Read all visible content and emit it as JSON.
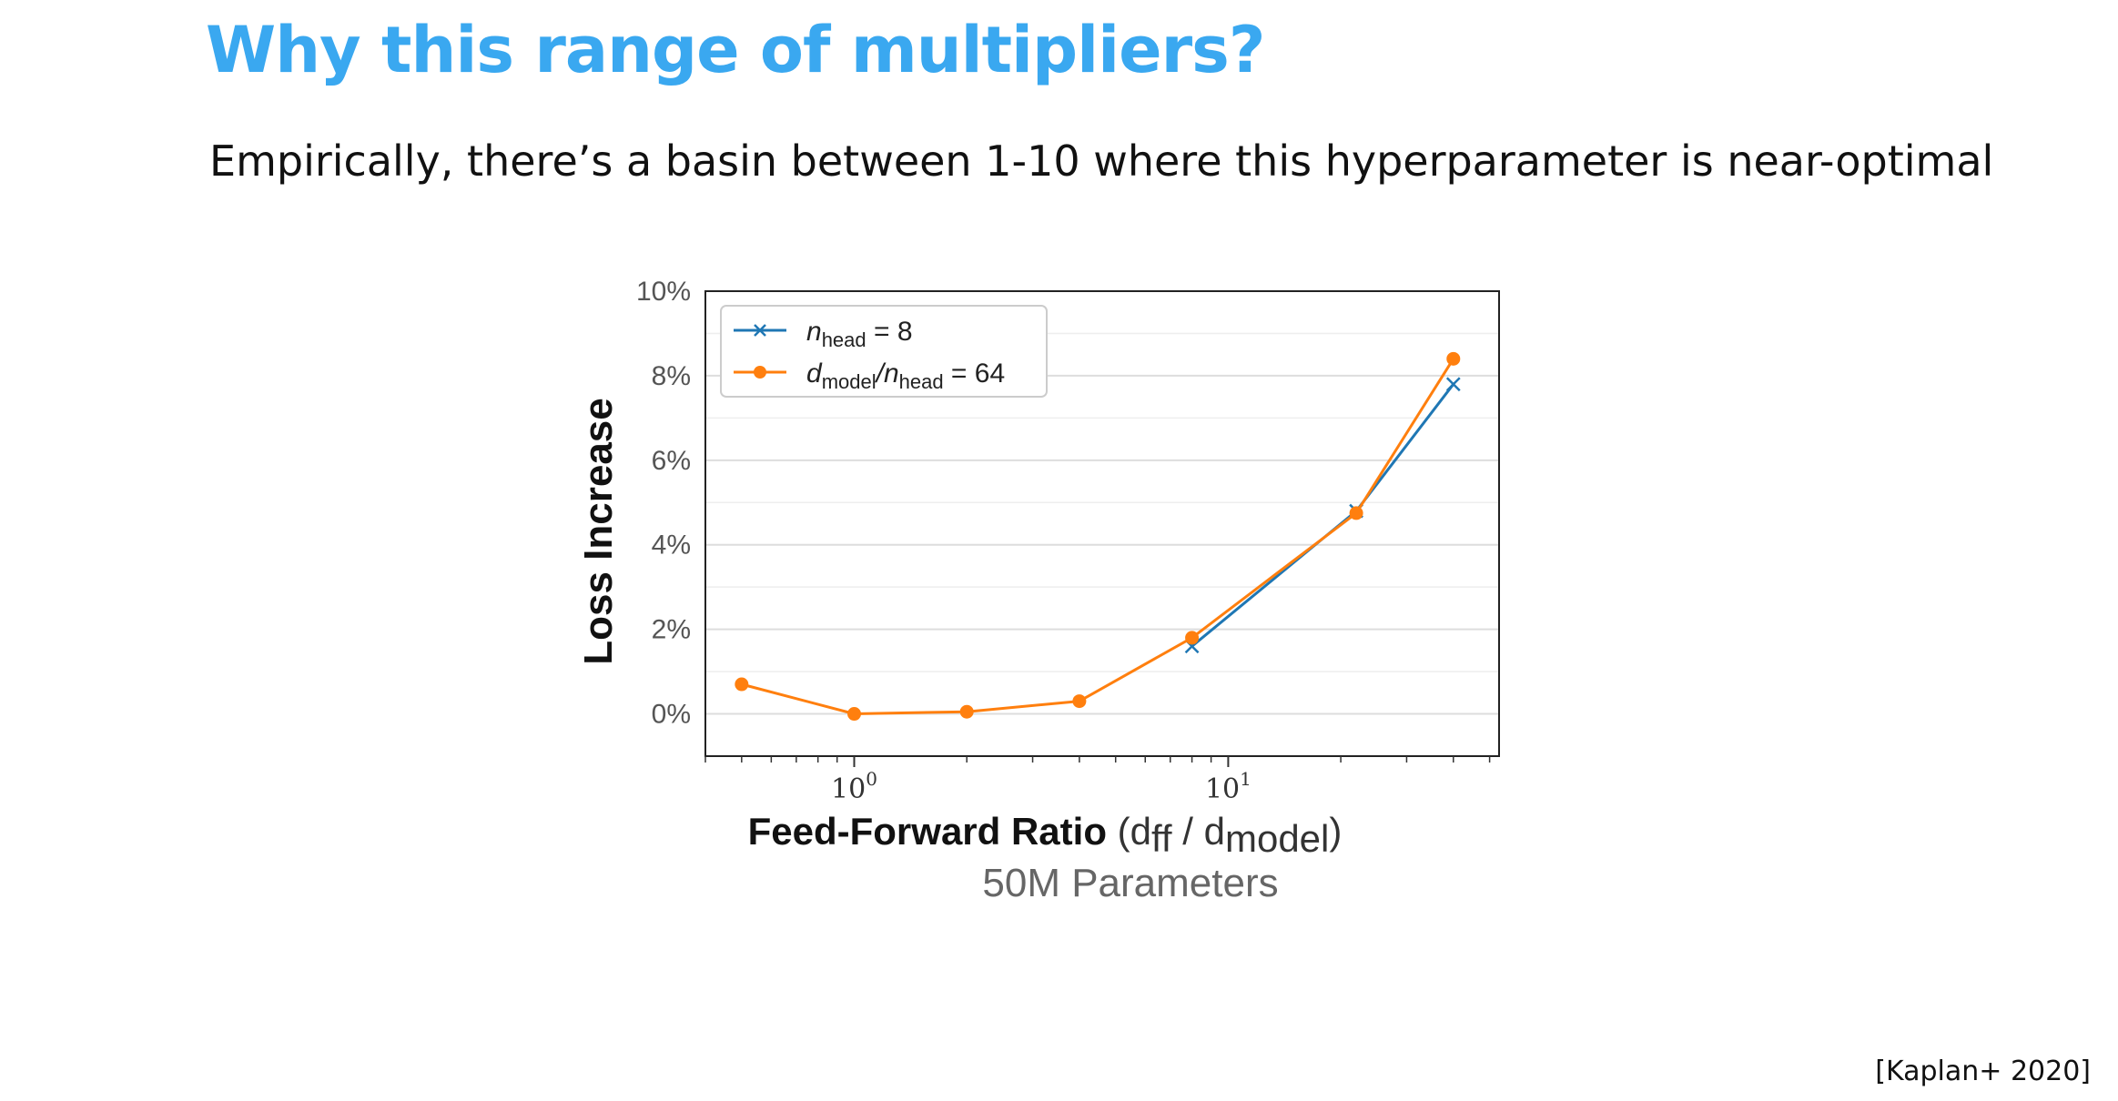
{
  "slide": {
    "title": "Why this range of multipliers?",
    "subtitle": "Empirically, there’s a  basin between 1-10 where this hyperparameter is near-optimal",
    "citation": "[Kaplan+ 2020]"
  },
  "chart_data": {
    "type": "line",
    "x_scale": "log",
    "xlim": [
      0.4,
      53
    ],
    "ylim": [
      -1,
      10
    ],
    "y_ticks": [
      0,
      2,
      4,
      6,
      8,
      10
    ],
    "y_tick_labels": [
      "0%",
      "2%",
      "4%",
      "6%",
      "8%",
      "10%"
    ],
    "x_ticks": [
      {
        "value": 1,
        "base": "10",
        "exp": "0"
      },
      {
        "value": 10,
        "base": "10",
        "exp": "1"
      }
    ],
    "xlabel": {
      "bold": "Feed-Forward Ratio",
      "open": " (d",
      "sub1": "ff",
      "mid": " / d",
      "sub2": "model",
      "close": ")"
    },
    "ylabel": "Loss Increase",
    "subtitle": "50M Parameters",
    "grid": true,
    "legend_position": "top-left",
    "series": [
      {
        "legend": {
          "var": "n",
          "sub": "head",
          "rest": " = 8"
        },
        "color": "#1f77b4",
        "marker": "x",
        "x": [
          8,
          22,
          40
        ],
        "y": [
          1.6,
          4.8,
          7.8
        ]
      },
      {
        "legend": {
          "var": "d",
          "sub": "model",
          "slash": "/n",
          "sub2": "head",
          "rest": " = 64"
        },
        "color": "#ff7f0e",
        "marker": "circle",
        "x": [
          0.5,
          1,
          2,
          4,
          8,
          22,
          40
        ],
        "y": [
          0.7,
          0.0,
          0.05,
          0.3,
          1.8,
          4.75,
          8.4
        ]
      }
    ]
  }
}
